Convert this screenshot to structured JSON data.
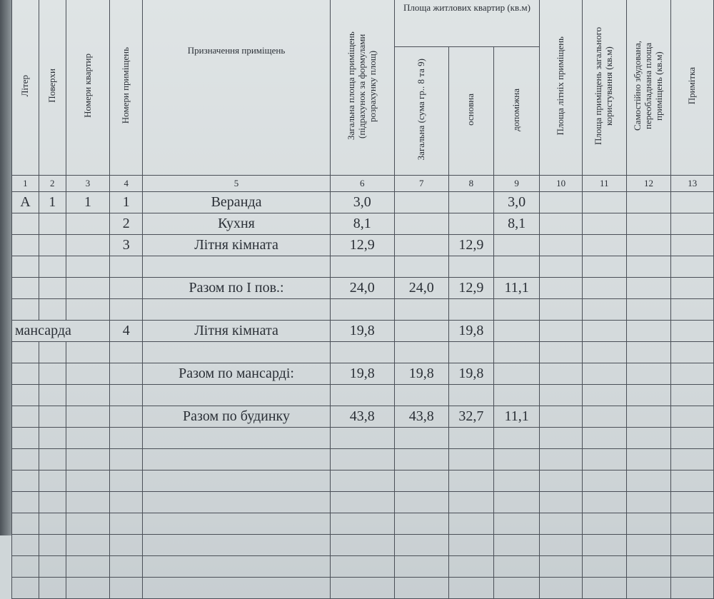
{
  "headers": {
    "c1": "Літер",
    "c2": "Поверхи",
    "c3": "Номери квартир",
    "c4": "Номери приміщень",
    "c5": "Призначення приміщень",
    "c6": "Загальна площа приміщень (підрахунок за формулами розрахунку площ)",
    "group": "Площа житлових квартир (кв.м)",
    "c7": "Загальна (сума гр.. 8 та 9)",
    "c8": "основна",
    "c9": "допоміжна",
    "c10": "Площа літніх приміщень",
    "c11": "Площа приміщень загального користування (кв.м)",
    "c12": "Самостійно збудована, переобладнана площа приміщень (кв.м)",
    "c13": "Примітка"
  },
  "column_numbers": [
    "1",
    "2",
    "3",
    "4",
    "5",
    "6",
    "7",
    "8",
    "9",
    "10",
    "11",
    "12",
    "13"
  ],
  "rows": [
    {
      "litera": "А",
      "floor": "1",
      "apt": "1",
      "room": "1",
      "name": "Веранда",
      "total": "3,0",
      "sum": "",
      "main": "",
      "aux": "3,0"
    },
    {
      "litera": "",
      "floor": "",
      "apt": "",
      "room": "2",
      "name": "Кухня",
      "total": "8,1",
      "sum": "",
      "main": "",
      "aux": "8,1"
    },
    {
      "litera": "",
      "floor": "",
      "apt": "",
      "room": "3",
      "name": "Літня кімната",
      "total": "12,9",
      "sum": "",
      "main": "12,9",
      "aux": ""
    },
    {
      "litera": "",
      "floor": "",
      "apt": "",
      "room": "",
      "name": "",
      "total": "",
      "sum": "",
      "main": "",
      "aux": ""
    },
    {
      "litera": "",
      "floor": "",
      "apt": "",
      "room": "",
      "name": "Разом по І пов.:",
      "total": "24,0",
      "sum": "24,0",
      "main": "12,9",
      "aux": "11,1"
    },
    {
      "litera": "",
      "floor": "",
      "apt": "",
      "room": "",
      "name": "",
      "total": "",
      "sum": "",
      "main": "",
      "aux": ""
    },
    {
      "litera": "мансарда",
      "floor": "",
      "apt": "",
      "room": "4",
      "name": "Літня кімната",
      "total": "19,8",
      "sum": "",
      "main": "19,8",
      "aux": ""
    },
    {
      "litera": "",
      "floor": "",
      "apt": "",
      "room": "",
      "name": "",
      "total": "",
      "sum": "",
      "main": "",
      "aux": ""
    },
    {
      "litera": "",
      "floor": "",
      "apt": "",
      "room": "",
      "name": "Разом по мансарді:",
      "total": "19,8",
      "sum": "19,8",
      "main": "19,8",
      "aux": ""
    },
    {
      "litera": "",
      "floor": "",
      "apt": "",
      "room": "",
      "name": "",
      "total": "",
      "sum": "",
      "main": "",
      "aux": ""
    },
    {
      "litera": "",
      "floor": "",
      "apt": "",
      "room": "",
      "name": "Разом по будинку",
      "total": "43,8",
      "sum": "43,8",
      "main": "32,7",
      "aux": "11,1"
    }
  ]
}
